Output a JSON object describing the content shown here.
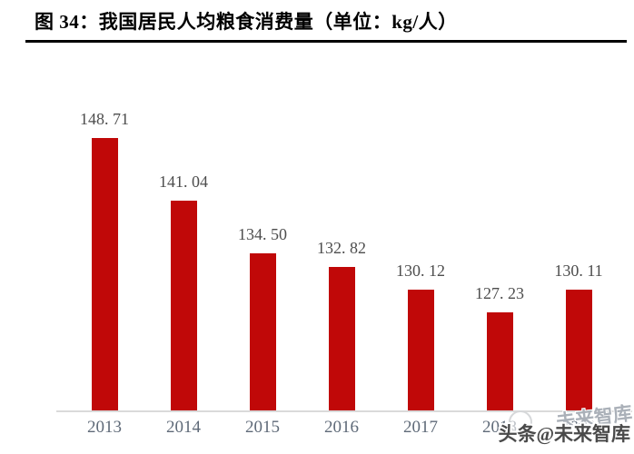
{
  "header": {
    "title": "图 34：我国居民人均粮食消费量（单位：kg/人）"
  },
  "chart_data": {
    "type": "bar",
    "title": "图 34：我国居民人均粮食消费量（单位：kg/人）",
    "unit": "kg/人",
    "categories": [
      "2013",
      "2014",
      "2015",
      "2016",
      "2017",
      "2018",
      "2019"
    ],
    "values": [
      148.71,
      141.04,
      134.5,
      132.82,
      130.12,
      127.23,
      130.11
    ],
    "value_labels": [
      "148. 71",
      "141. 04",
      "134. 50",
      "132. 82",
      "130. 12",
      "127. 23",
      "130. 11"
    ],
    "xlabel": "",
    "ylabel": "",
    "ylim": [
      115,
      150
    ],
    "grid": false,
    "legend": "none",
    "bar_color": "#c00808"
  },
  "colors": {
    "bar": "#c00808",
    "value_label": "#4d4d4d",
    "axis_label": "#5f6a78",
    "axis_line": "#dadada",
    "title_text": "#000000",
    "title_rule": "#000000"
  },
  "watermark": {
    "text": "头条@未来智库",
    "ghost_text": "未来智库"
  }
}
